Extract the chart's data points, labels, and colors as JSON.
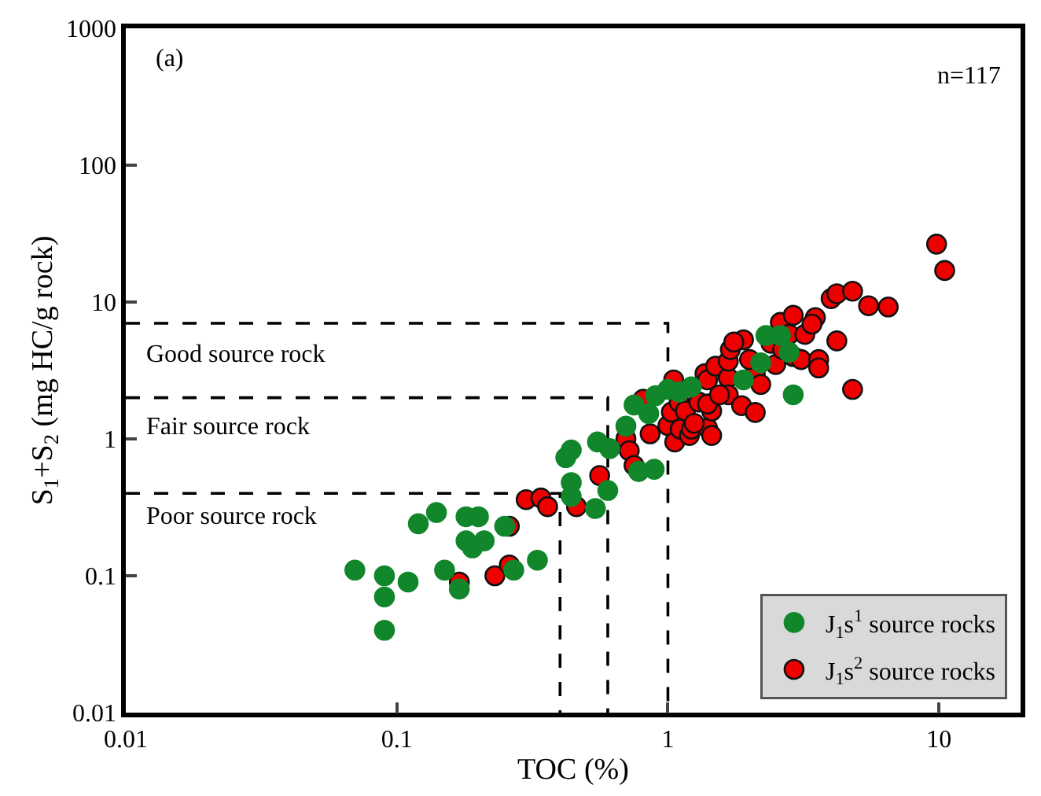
{
  "chart_data": {
    "type": "scatter",
    "log": "xy",
    "xlabel": "TOC (%)",
    "ylabel": "S$_{1}$+S$_{2}$ (mg HC/g rock)",
    "xlim": [
      0.01,
      20
    ],
    "xticks": [
      0.01,
      0.1,
      1,
      10
    ],
    "ylim": [
      0.01,
      1000
    ],
    "yticks": [
      0.01,
      0.1,
      1,
      10,
      100,
      1000
    ],
    "grid": false,
    "legend": "bottom right",
    "marker": "circle",
    "annotations": [
      "(a)",
      "n=117",
      "Good source rock",
      "Fair source rock",
      "Poor source rock"
    ],
    "series": [
      {
        "type": "line",
        "color": "#000000",
        "line_style": "dashed",
        "marker": "none",
        "x": [
          0.01,
          1,
          1
        ],
        "values": [
          7,
          7,
          0.01
        ]
      },
      {
        "type": "line",
        "color": "#000000",
        "line_style": "dashed",
        "marker": "none",
        "x": [
          0.01,
          0.6,
          0.6
        ],
        "values": [
          2,
          2,
          0.01
        ]
      },
      {
        "type": "line",
        "color": "#000000",
        "line_style": "dashed",
        "marker": "none",
        "x": [
          0.01,
          0.4,
          0.4
        ],
        "values": [
          0.4,
          0.4,
          0.01
        ]
      },
      {
        "name": "J$_{1}$s$^{1}$ source rocks",
        "color": "#11862b",
        "x": [
          0.07,
          0.09,
          0.09,
          0.09,
          0.11,
          0.12,
          0.14,
          0.15,
          0.18,
          0.18,
          0.17,
          0.2,
          0.19,
          0.21,
          0.25,
          0.27,
          0.33,
          0.42,
          0.44,
          0.44,
          0.44,
          0.54,
          0.55,
          0.6,
          0.61,
          0.7,
          0.75,
          0.78,
          0.85,
          0.89,
          0.9,
          1.0,
          1.1,
          1.22,
          1.9,
          2.2,
          2.3,
          2.6,
          2.8,
          2.9
        ],
        "values": [
          0.11,
          0.1,
          0.07,
          0.04,
          0.09,
          0.24,
          0.29,
          0.11,
          0.27,
          0.18,
          0.08,
          0.27,
          0.16,
          0.18,
          0.23,
          0.11,
          0.13,
          0.73,
          0.83,
          0.48,
          0.38,
          0.31,
          0.95,
          0.42,
          0.85,
          1.24,
          1.77,
          0.58,
          1.53,
          0.6,
          2.07,
          2.3,
          2.2,
          2.4,
          2.7,
          3.6,
          5.7,
          5.7,
          4.3,
          2.1
        ]
      },
      {
        "name": "J$_{1}$s$^{2}$ source rocks",
        "color": "#ee0000",
        "x": [
          0.17,
          0.23,
          0.26,
          0.26,
          0.3,
          0.34,
          0.36,
          0.46,
          0.56,
          0.7,
          0.72,
          0.75,
          0.78,
          0.81,
          0.86,
          1.0,
          1.03,
          1.05,
          1.06,
          1.1,
          1.11,
          1.16,
          1.2,
          1.22,
          1.3,
          1.37,
          1.4,
          1.4,
          1.45,
          1.5,
          1.4,
          1.67,
          1.67,
          1.67,
          1.7,
          1.87,
          1.9,
          2.1,
          2.1,
          2.2,
          2.4,
          2.5,
          2.6,
          2.65,
          2.8,
          2.9,
          2.9,
          3.2,
          3.5,
          3.4,
          3.1,
          3.6,
          4.2,
          3.6,
          4.0,
          4.2,
          4.8,
          4.8,
          5.5,
          6.5,
          9.8,
          10.5,
          1.55,
          1.25,
          1.45,
          1.75,
          2.0
        ],
        "values": [
          0.09,
          0.1,
          0.23,
          0.12,
          0.36,
          0.37,
          0.32,
          0.32,
          0.54,
          1.0,
          0.82,
          0.64,
          0.58,
          1.95,
          1.09,
          1.25,
          1.57,
          2.7,
          0.95,
          1.85,
          1.18,
          1.6,
          1.06,
          1.18,
          1.86,
          3.0,
          2.7,
          1.2,
          1.6,
          3.4,
          1.8,
          2.8,
          3.7,
          2.1,
          4.5,
          1.75,
          5.3,
          3.0,
          1.56,
          2.5,
          5.0,
          3.5,
          7.1,
          4.5,
          5.8,
          4.0,
          8.0,
          5.8,
          7.7,
          6.9,
          3.8,
          3.8,
          5.2,
          3.3,
          10.6,
          11.5,
          2.3,
          12.0,
          9.4,
          9.2,
          26.5,
          17,
          2.1,
          1.3,
          1.06,
          5.1,
          3.8
        ]
      }
    ]
  }
}
